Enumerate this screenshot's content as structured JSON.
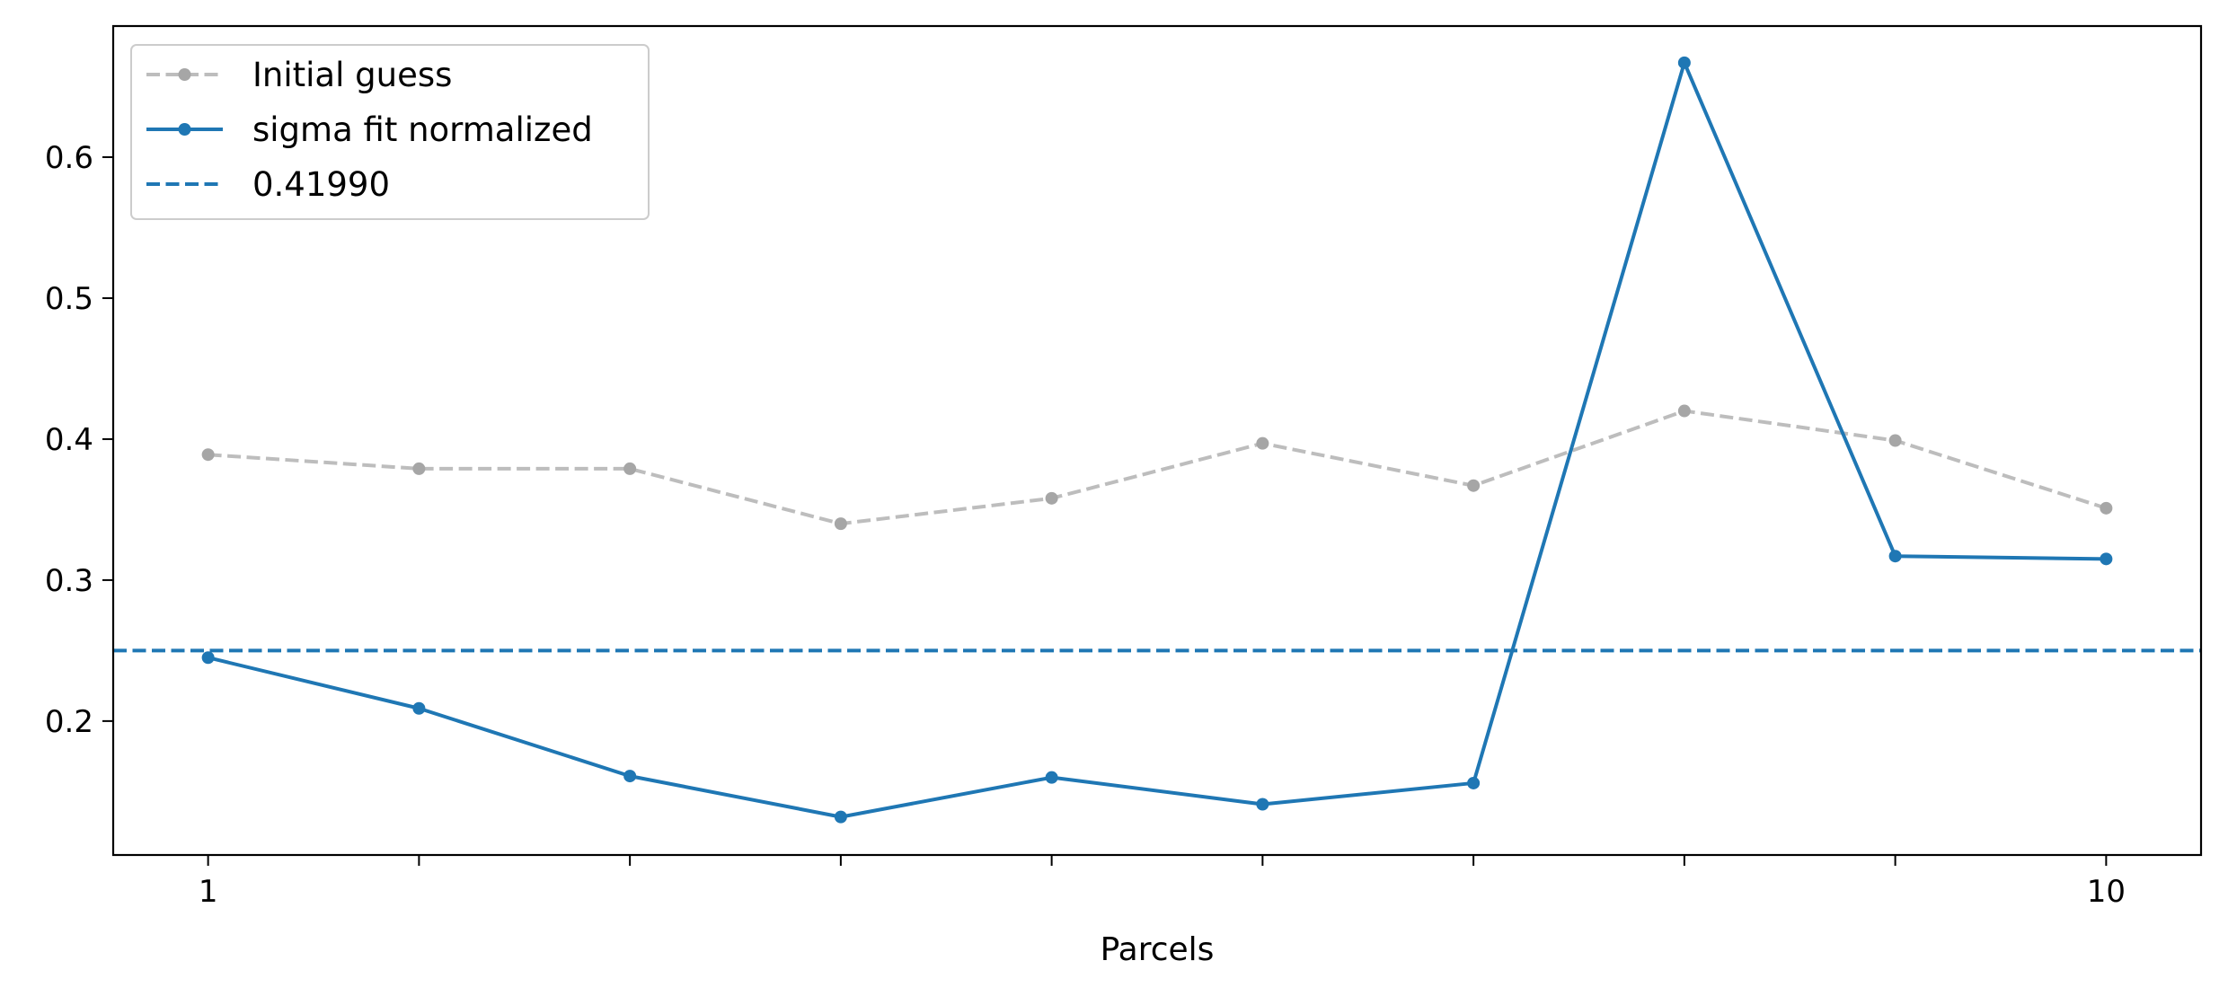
{
  "chart_data": {
    "type": "line",
    "title": "",
    "xlabel": "Parcels",
    "ylabel": "",
    "x": [
      1,
      2,
      3,
      4,
      5,
      6,
      7,
      8,
      9,
      10
    ],
    "x_tick_labels": [
      "1",
      "",
      "",
      "",
      "",
      "",
      "",
      "",
      "",
      "10"
    ],
    "xlim": [
      0.55,
      10.45
    ],
    "ylim": [
      0.105,
      0.693
    ],
    "y_ticks": [
      0.2,
      0.3,
      0.4,
      0.5,
      0.6
    ],
    "y_tick_labels": [
      "0.2",
      "0.3",
      "0.4",
      "0.5",
      "0.6"
    ],
    "grid": false,
    "legend_position": "upper-left",
    "series": [
      {
        "name": "Initial guess",
        "values": [
          0.389,
          0.379,
          0.379,
          0.34,
          0.358,
          0.397,
          0.367,
          0.42,
          0.399,
          0.351
        ],
        "color": "#bdbdbd",
        "marker_color": "#a6a6a6",
        "linestyle": "dashed",
        "marker": "circle"
      },
      {
        "name": "sigma fit normalized",
        "values": [
          0.245,
          0.209,
          0.161,
          0.132,
          0.16,
          0.141,
          0.156,
          0.667,
          0.317,
          0.315
        ],
        "color": "#1f77b4",
        "marker_color": "#1f77b4",
        "linestyle": "solid",
        "marker": "circle"
      }
    ],
    "reference_lines": [
      {
        "name": "0.41990",
        "y": 0.25,
        "color": "#1f77b4",
        "linestyle": "dashed"
      }
    ]
  }
}
